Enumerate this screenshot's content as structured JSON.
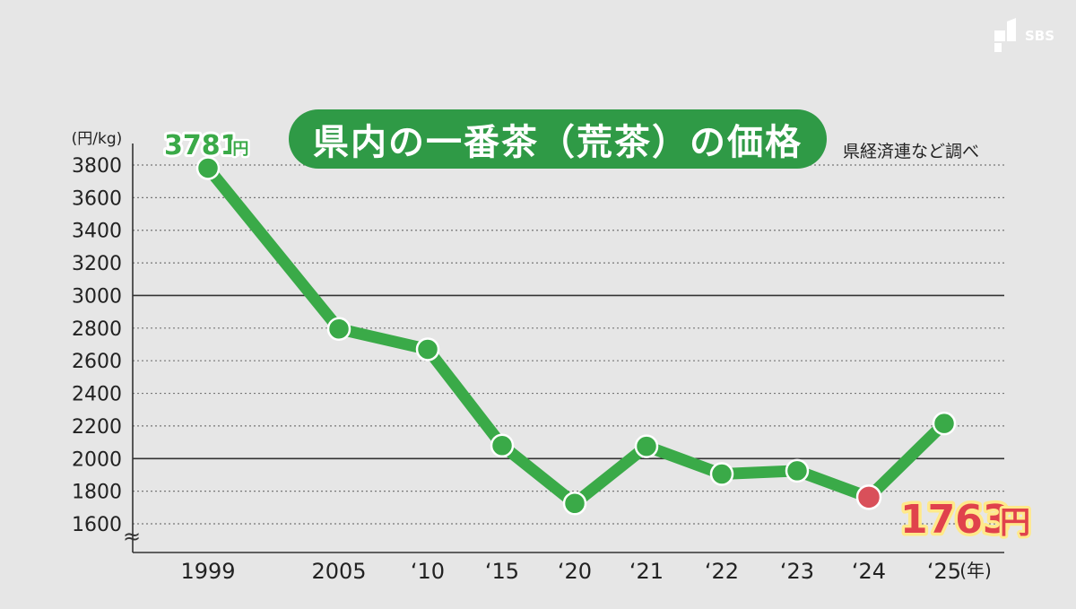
{
  "brand": {
    "name": "SBS",
    "icon": "sbs-logo-icon"
  },
  "chart_data": {
    "type": "line",
    "title": "県内の一番茶（荒茶）の価格",
    "source": "県経済連など調べ",
    "y_unit": "(円/kg)",
    "x_unit": "(年)",
    "categories": [
      "1999",
      "2005",
      "‘10",
      "‘15",
      "‘20",
      "‘21",
      "‘22",
      "‘23",
      "‘24",
      "‘25"
    ],
    "series": [
      {
        "values": [
          3781,
          2795,
          2670,
          2080,
          1725,
          2075,
          1905,
          1925,
          1763,
          2215
        ]
      }
    ],
    "y_ticks": [
      1600,
      1800,
      2000,
      2200,
      2400,
      2600,
      2800,
      3000,
      3200,
      3400,
      3600,
      3800
    ],
    "ylim": [
      1600,
      3800
    ],
    "axis_break": "≈",
    "annotations": [
      {
        "index": 0,
        "value": "3781",
        "unit": "円"
      },
      {
        "index": 8,
        "value": "1763",
        "unit": "円"
      }
    ],
    "colors": {
      "line": "#3aaa48",
      "highlight": "#d9505a",
      "highlight_label": "#e0424c",
      "title_bg": "#2f9a46"
    },
    "grid": true
  }
}
